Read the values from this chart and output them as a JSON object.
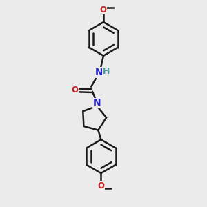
{
  "background_color": "#ebebeb",
  "bond_color": "#1a1a1a",
  "nitrogen_color": "#2020cc",
  "oxygen_color": "#cc2020",
  "hydrogen_color": "#4a9a9a",
  "line_width": 1.8,
  "figsize": [
    3.0,
    3.0
  ],
  "dpi": 100,
  "xlim": [
    0,
    10
  ],
  "ylim": [
    0,
    10
  ]
}
